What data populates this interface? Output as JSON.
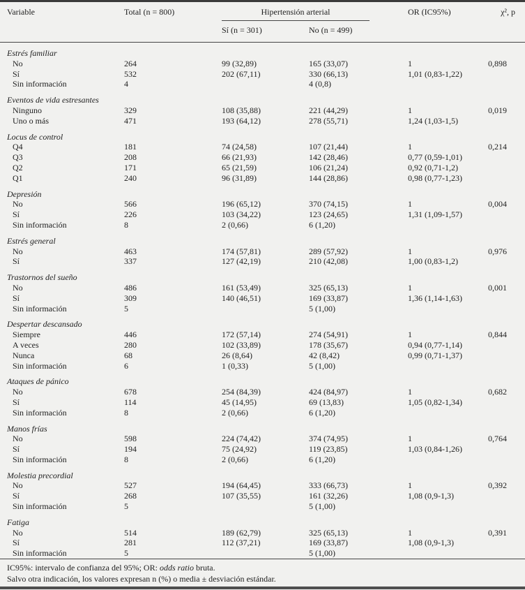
{
  "table": {
    "header": {
      "variable": "Variable",
      "total": "Total (n = 800)",
      "hta_group": "Hipertensión arterial",
      "sub_si": "Sí (n = 301)",
      "sub_no": "No (n = 499)",
      "or": "OR (IC95%)",
      "chi": "χ², p"
    },
    "groups": [
      {
        "label": "Estrés familiar",
        "rows": [
          {
            "label": "No",
            "total": "264",
            "si": "99 (32,89)",
            "no": "165 (33,07)",
            "or": "1",
            "p": "0,898"
          },
          {
            "label": "Sí",
            "total": "532",
            "si": "202 (67,11)",
            "no": "330 (66,13)",
            "or": "1,01 (0,83-1,22)",
            "p": ""
          },
          {
            "label": "Sin información",
            "total": "4",
            "si": "",
            "no": "4 (0,8)",
            "or": "",
            "p": ""
          }
        ]
      },
      {
        "label": "Eventos de vida estresantes",
        "rows": [
          {
            "label": "Ninguno",
            "total": "329",
            "si": "108 (35,88)",
            "no": "221 (44,29)",
            "or": "1",
            "p": "0,019"
          },
          {
            "label": "Uno o más",
            "total": "471",
            "si": "193 (64,12)",
            "no": "278 (55,71)",
            "or": "1,24 (1,03-1,5)",
            "p": ""
          }
        ]
      },
      {
        "label": "Locus de control",
        "rows": [
          {
            "label": "Q4",
            "total": "181",
            "si": "74 (24,58)",
            "no": "107 (21,44)",
            "or": "1",
            "p": "0,214"
          },
          {
            "label": "Q3",
            "total": "208",
            "si": "66 (21,93)",
            "no": "142 (28,46)",
            "or": "0,77 (0,59-1,01)",
            "p": ""
          },
          {
            "label": "Q2",
            "total": "171",
            "si": "65 (21,59)",
            "no": "106 (21,24)",
            "or": "0,92 (0,71-1,2)",
            "p": ""
          },
          {
            "label": "Q1",
            "total": "240",
            "si": "96 (31,89)",
            "no": "144 (28,86)",
            "or": "0,98 (0,77-1,23)",
            "p": ""
          }
        ]
      },
      {
        "label": "Depresión",
        "rows": [
          {
            "label": "No",
            "total": "566",
            "si": "196 (65,12)",
            "no": "370 (74,15)",
            "or": "1",
            "p": "0,004"
          },
          {
            "label": "Sí",
            "total": "226",
            "si": "103 (34,22)",
            "no": "123 (24,65)",
            "or": "1,31 (1,09-1,57)",
            "p": ""
          },
          {
            "label": "Sin información",
            "total": "8",
            "si": "2 (0,66)",
            "no": "6 (1,20)",
            "or": "",
            "p": ""
          }
        ]
      },
      {
        "label": "Estrés general",
        "rows": [
          {
            "label": "No",
            "total": "463",
            "si": "174 (57,81)",
            "no": "289 (57,92)",
            "or": "1",
            "p": "0,976"
          },
          {
            "label": "Sí",
            "total": "337",
            "si": "127 (42,19)",
            "no": "210 (42,08)",
            "or": "1,00 (0,83-1,2)",
            "p": ""
          }
        ]
      },
      {
        "label": "Trastornos del sueño",
        "rows": [
          {
            "label": "No",
            "total": "486",
            "si": "161 (53,49)",
            "no": "325 (65,13)",
            "or": "1",
            "p": "0,001"
          },
          {
            "label": "Sí",
            "total": "309",
            "si": "140 (46,51)",
            "no": "169 (33,87)",
            "or": "1,36 (1,14-1,63)",
            "p": ""
          },
          {
            "label": "Sin información",
            "total": "5",
            "si": "",
            "no": "5 (1,00)",
            "or": "",
            "p": ""
          }
        ]
      },
      {
        "label": "Despertar descansado",
        "rows": [
          {
            "label": "Siempre",
            "total": "446",
            "si": "172 (57,14)",
            "no": "274 (54,91)",
            "or": "1",
            "p": "0,844"
          },
          {
            "label": "A veces",
            "total": "280",
            "si": "102 (33,89)",
            "no": "178 (35,67)",
            "or": "0,94 (0,77-1,14)",
            "p": ""
          },
          {
            "label": "Nunca",
            "total": "68",
            "si": "26 (8,64)",
            "no": "42 (8,42)",
            "or": "0,99 (0,71-1,37)",
            "p": ""
          },
          {
            "label": "Sin información",
            "total": "6",
            "si": "1 (0,33)",
            "no": "5 (1,00)",
            "or": "",
            "p": ""
          }
        ]
      },
      {
        "label": "Ataques de pánico",
        "rows": [
          {
            "label": "No",
            "total": "678",
            "si": "254 (84,39)",
            "no": "424 (84,97)",
            "or": "1",
            "p": "0,682"
          },
          {
            "label": "Sí",
            "total": "114",
            "si": "45 (14,95)",
            "no": "69 (13,83)",
            "or": "1,05 (0,82-1,34)",
            "p": ""
          },
          {
            "label": "Sin información",
            "total": "8",
            "si": "2 (0,66)",
            "no": "6 (1,20)",
            "or": "",
            "p": ""
          }
        ]
      },
      {
        "label": "Manos frías",
        "rows": [
          {
            "label": "No",
            "total": "598",
            "si": "224 (74,42)",
            "no": "374 (74,95)",
            "or": "1",
            "p": "0,764"
          },
          {
            "label": "Sí",
            "total": "194",
            "si": "75 (24,92)",
            "no": "119 (23,85)",
            "or": "1,03 (0,84-1,26)",
            "p": ""
          },
          {
            "label": "Sin información",
            "total": "8",
            "si": "2 (0,66)",
            "no": "6 (1,20)",
            "or": "",
            "p": ""
          }
        ]
      },
      {
        "label": "Molestia precordial",
        "rows": [
          {
            "label": "No",
            "total": "527",
            "si": "194 (64,45)",
            "no": "333 (66,73)",
            "or": "1",
            "p": "0,392"
          },
          {
            "label": "Sí",
            "total": "268",
            "si": "107 (35,55)",
            "no": "161 (32,26)",
            "or": "1,08 (0,9-1,3)",
            "p": ""
          },
          {
            "label": "Sin información",
            "total": "5",
            "si": "",
            "no": "5 (1,00)",
            "or": "",
            "p": ""
          }
        ]
      },
      {
        "label": "Fatiga",
        "rows": [
          {
            "label": "No",
            "total": "514",
            "si": "189 (62,79)",
            "no": "325 (65,13)",
            "or": "1",
            "p": "0,391"
          },
          {
            "label": "Sí",
            "total": "281",
            "si": "112 (37,21)",
            "no": "169 (33,87)",
            "or": "1,08 (0,9-1,3)",
            "p": ""
          },
          {
            "label": "Sin información",
            "total": "5",
            "si": "",
            "no": "5 (1,00)",
            "or": "",
            "p": ""
          }
        ]
      }
    ]
  },
  "footnotes": {
    "line1_prefix": "IC95%: intervalo de confianza del 95%; OR: ",
    "line1_italic": "odds ratio",
    "line1_suffix": " bruta.",
    "line2": "Salvo otra indicación, los valores expresan n (%) o media ± desviación estándar."
  },
  "colors": {
    "background": "#f1f1ef",
    "text": "#1e1e1e",
    "border_heavy": "#3b3b3b",
    "border_light": "#454545"
  }
}
